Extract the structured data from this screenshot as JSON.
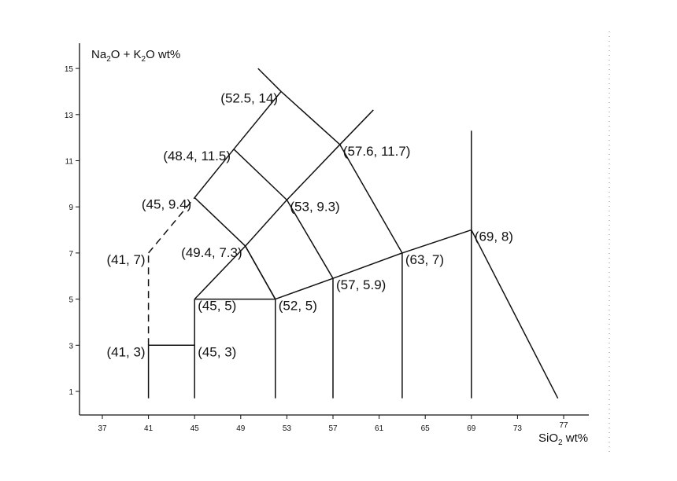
{
  "chart_data": {
    "type": "diagram",
    "x_axis": {
      "title_parts": [
        "SiO",
        "2",
        " wt%"
      ],
      "ticks": [
        37,
        41,
        45,
        49,
        53,
        57,
        61,
        65,
        69,
        73,
        77
      ]
    },
    "y_axis": {
      "title_parts": [
        "Na",
        "2",
        "O + K",
        "2",
        "O wt%"
      ],
      "ticks": [
        1,
        3,
        5,
        7,
        9,
        11,
        13,
        15
      ]
    },
    "boundaries": [
      {
        "points": [
          [
            41,
            0.7
          ],
          [
            41,
            3
          ]
        ]
      },
      {
        "points": [
          [
            41,
            3
          ],
          [
            45,
            3
          ]
        ]
      },
      {
        "points": [
          [
            41,
            3
          ],
          [
            41,
            7
          ]
        ],
        "dashed": true
      },
      {
        "points": [
          [
            41,
            7
          ],
          [
            45,
            9.4
          ]
        ],
        "dashed": true
      },
      {
        "points": [
          [
            45,
            0.7
          ],
          [
            45,
            5
          ]
        ]
      },
      {
        "points": [
          [
            45,
            5
          ],
          [
            52,
            5
          ]
        ]
      },
      {
        "points": [
          [
            52,
            0.7
          ],
          [
            52,
            5
          ]
        ]
      },
      {
        "points": [
          [
            45,
            5
          ],
          [
            49.4,
            7.3
          ]
        ]
      },
      {
        "points": [
          [
            49.4,
            7.3
          ],
          [
            52,
            5
          ]
        ]
      },
      {
        "points": [
          [
            52,
            5
          ],
          [
            57,
            5.9
          ]
        ]
      },
      {
        "points": [
          [
            57,
            5.9
          ],
          [
            63,
            7
          ]
        ]
      },
      {
        "points": [
          [
            63,
            7
          ],
          [
            69,
            8
          ]
        ]
      },
      {
        "points": [
          [
            57,
            0.7
          ],
          [
            57,
            5.9
          ]
        ]
      },
      {
        "points": [
          [
            63,
            0.7
          ],
          [
            63,
            7
          ]
        ]
      },
      {
        "points": [
          [
            49.4,
            7.3
          ],
          [
            53,
            9.3
          ]
        ]
      },
      {
        "points": [
          [
            53,
            9.3
          ],
          [
            57.6,
            11.7
          ]
        ]
      },
      {
        "points": [
          [
            57.6,
            11.7
          ],
          [
            60.5,
            13.2
          ]
        ]
      },
      {
        "points": [
          [
            45,
            9.4
          ],
          [
            48.4,
            11.5
          ]
        ]
      },
      {
        "points": [
          [
            48.4,
            11.5
          ],
          [
            52.5,
            14
          ]
        ]
      },
      {
        "points": [
          [
            52.5,
            14
          ],
          [
            50.5,
            15
          ]
        ]
      },
      {
        "points": [
          [
            45,
            9.4
          ],
          [
            49.4,
            7.3
          ]
        ]
      },
      {
        "points": [
          [
            49.4,
            7.3
          ],
          [
            52,
            5
          ]
        ]
      },
      {
        "points": [
          [
            48.4,
            11.5
          ],
          [
            53,
            9.3
          ]
        ]
      },
      {
        "points": [
          [
            53,
            9.3
          ],
          [
            57,
            5.9
          ]
        ]
      },
      {
        "points": [
          [
            52.5,
            14
          ],
          [
            57.6,
            11.7
          ]
        ]
      },
      {
        "points": [
          [
            57.6,
            11.7
          ],
          [
            63,
            7
          ]
        ]
      },
      {
        "points": [
          [
            69,
            0.7
          ],
          [
            69,
            8
          ]
        ]
      },
      {
        "points": [
          [
            69,
            8
          ],
          [
            69,
            12.3
          ]
        ]
      },
      {
        "points": [
          [
            69,
            8
          ],
          [
            76.5,
            0.7
          ]
        ]
      }
    ],
    "labels": [
      {
        "text": "(52.5, 14)",
        "x": 52.5,
        "y": 14,
        "anchor": "end"
      },
      {
        "text": "(48.4, 11.5)",
        "x": 48.4,
        "y": 11.5,
        "anchor": "end"
      },
      {
        "text": "(45, 9.4)",
        "x": 45,
        "y": 9.4,
        "anchor": "end"
      },
      {
        "text": "(41, 7)",
        "x": 41,
        "y": 7,
        "anchor": "end"
      },
      {
        "text": "(41, 3)",
        "x": 41,
        "y": 3,
        "anchor": "end"
      },
      {
        "text": "(45, 3)",
        "x": 45,
        "y": 3,
        "anchor": "start"
      },
      {
        "text": "(45, 5)",
        "x": 45,
        "y": 5,
        "anchor": "start"
      },
      {
        "text": "(49.4, 7.3)",
        "x": 49.4,
        "y": 7.3,
        "anchor": "end"
      },
      {
        "text": "(53, 9.3)",
        "x": 53,
        "y": 9.3,
        "anchor": "start"
      },
      {
        "text": "(57.6, 11.7)",
        "x": 57.6,
        "y": 11.7,
        "anchor": "start"
      },
      {
        "text": "(52, 5)",
        "x": 52,
        "y": 5,
        "anchor": "start"
      },
      {
        "text": "(57, 5.9)",
        "x": 57,
        "y": 5.9,
        "anchor": "start"
      },
      {
        "text": "(63, 7)",
        "x": 63,
        "y": 7,
        "anchor": "start"
      },
      {
        "text": "(69, 8)",
        "x": 69,
        "y": 8,
        "anchor": "start"
      }
    ]
  }
}
